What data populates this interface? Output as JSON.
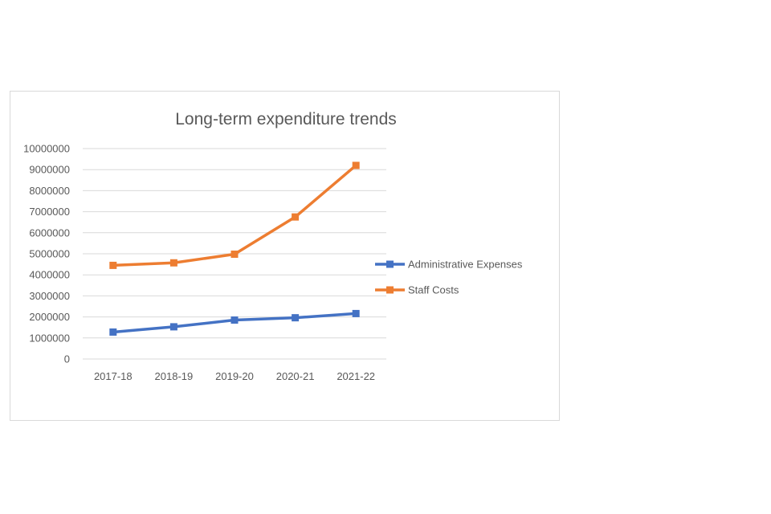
{
  "chart_data": {
    "type": "line",
    "title": "Long-term expenditure trends",
    "xlabel": "",
    "ylabel": "",
    "categories": [
      "2017-18",
      "2018-19",
      "2019-20",
      "2020-21",
      "2021-22"
    ],
    "ylim": [
      0,
      10000000
    ],
    "yticks": [
      "0",
      "1000000",
      "2000000",
      "3000000",
      "4000000",
      "5000000",
      "6000000",
      "7000000",
      "8000000",
      "9000000",
      "10000000"
    ],
    "grid": true,
    "legend_position": "right",
    "series": [
      {
        "name": "Administrative Expenses",
        "color": "#4472c4",
        "values": [
          1280000,
          1530000,
          1850000,
          1960000,
          2160000
        ]
      },
      {
        "name": "Staff Costs",
        "color": "#ed7d31",
        "values": [
          4450000,
          4570000,
          4980000,
          6750000,
          9200000
        ]
      }
    ]
  }
}
